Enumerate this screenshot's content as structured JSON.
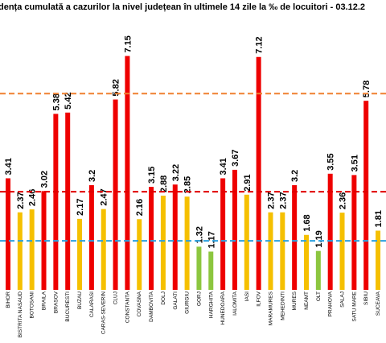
{
  "chart_data": {
    "type": "bar",
    "title": "dența cumulată a cazurilor la nivel județean în ultimele 14 zile la ‰ de locuitori - 03.12.2",
    "categories": [
      "BIHOR",
      "BISTRITA NASAUD",
      "BOTOSANI",
      "BRAILA",
      "BRASOV",
      "BUCURESTI",
      "BUZAU",
      "CALARASI",
      "CARAS-SEVERIN",
      "CLUJ",
      "CONSTANTA",
      "COVASNA",
      "DAMBOVITA",
      "DOLJ",
      "GALATI",
      "GIURGIU",
      "GORJ",
      "HARGHITA",
      "HUNEDOARA",
      "IALOMITA",
      "IASI",
      "ILFOV",
      "MARAMURES",
      "MEHEDINTI",
      "MURES",
      "NEAMT",
      "OLT",
      "PRAHOVA",
      "SALAJ",
      "SATU MARE",
      "SIBIU",
      "SUCEAVA"
    ],
    "values": [
      3.41,
      2.37,
      2.46,
      3.02,
      5.38,
      5.42,
      2.17,
      3.2,
      2.47,
      5.82,
      7.15,
      2.16,
      3.15,
      2.88,
      3.22,
      2.85,
      1.32,
      1.17,
      3.41,
      3.67,
      2.91,
      7.12,
      2.37,
      2.37,
      3.2,
      1.68,
      1.19,
      3.55,
      2.36,
      3.51,
      5.78,
      1.81
    ],
    "colors": [
      "#ee0000",
      "#f5c000",
      "#f5c000",
      "#ee0000",
      "#ee0000",
      "#ee0000",
      "#f5c000",
      "#ee0000",
      "#f5c000",
      "#ee0000",
      "#ee0000",
      "#f5c000",
      "#ee0000",
      "#f5c000",
      "#ee0000",
      "#f5c000",
      "#8cc63f",
      "#8cc63f",
      "#ee0000",
      "#ee0000",
      "#f5c000",
      "#ee0000",
      "#f5c000",
      "#f5c000",
      "#ee0000",
      "#f5c000",
      "#8cc63f",
      "#ee0000",
      "#f5c000",
      "#ee0000",
      "#ee0000",
      "#f5c000"
    ],
    "ylim": [
      0,
      8
    ],
    "reference_lines": [
      {
        "value": 6,
        "color": "#f08030"
      },
      {
        "value": 3,
        "color": "#e00000"
      },
      {
        "value": 1.5,
        "color": "#2aa0e0"
      }
    ]
  }
}
